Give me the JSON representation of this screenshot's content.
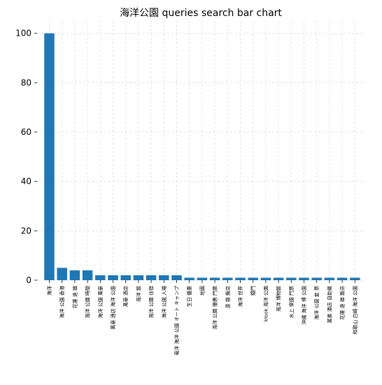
{
  "chart_data": {
    "type": "bar",
    "title": "海洋公園 queries search bar chart",
    "xlabel": "",
    "ylabel": "",
    "ylim": [
      0,
      105
    ],
    "yticks": [
      0,
      20,
      40,
      60,
      80,
      100
    ],
    "grid": true,
    "bar_color": "#1f77b4",
    "categories": [
      "海洋",
      "海洋 公園 香港",
      "花蓮 遠 雄",
      "海洋 公園 時間",
      "海洋 公園 萬豪",
      "萬豪 酒店 海洋 公園",
      "萬豪 酒店",
      "海洋 館",
      "海洋 公園 住宿",
      "海洋 公園 入場",
      "竜洋 海洋 公園 オート キャンプ",
      "生日 優惠",
      "地圖",
      "海洋 公園 優惠 門票",
      "遠 雄 飯店",
      "海洋 世界",
      "鐵門",
      "klook 海洋 公園",
      "海洋 博物館",
      "水上 樂園 門票",
      "沖繩 海洋 博 公園",
      "海洋 公園 套 票",
      "萬豪 酒店 自助餐",
      "花蓮 遠 雄 飯店",
      "和歌山 白崎 海洋 公園"
    ],
    "values": [
      100,
      5,
      4,
      4,
      2,
      2,
      2,
      2,
      2,
      2,
      2,
      1,
      1,
      1,
      1,
      1,
      1,
      1,
      1,
      1,
      1,
      1,
      1,
      1,
      1
    ]
  }
}
